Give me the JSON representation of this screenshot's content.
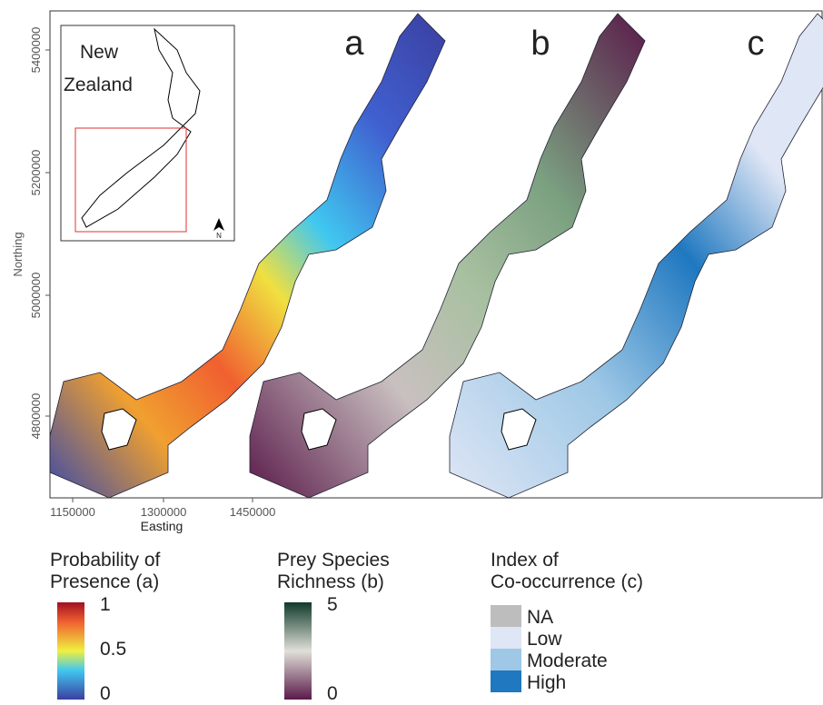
{
  "axes": {
    "y_label": "Northing",
    "y_ticks": [
      "4800000",
      "5000000",
      "5200000",
      "5400000"
    ],
    "x_label": "Easting",
    "x_ticks": [
      "1150000",
      "1300000",
      "1450000"
    ]
  },
  "panels": [
    "a",
    "b",
    "c"
  ],
  "inset": {
    "lines": [
      "New",
      "Zealand"
    ],
    "north": "N"
  },
  "legends": [
    {
      "title": [
        "Probability of",
        "Presence (a)"
      ],
      "labels": [
        "1",
        "0.5",
        "0"
      ]
    },
    {
      "title": [
        "Prey Species",
        "Richness (b)"
      ],
      "labels": [
        "5",
        "0"
      ]
    },
    {
      "title": [
        "Index of",
        "Co-occurrence (c)"
      ],
      "labels": [
        "NA",
        "Low",
        "Moderate",
        "High"
      ]
    }
  ]
}
